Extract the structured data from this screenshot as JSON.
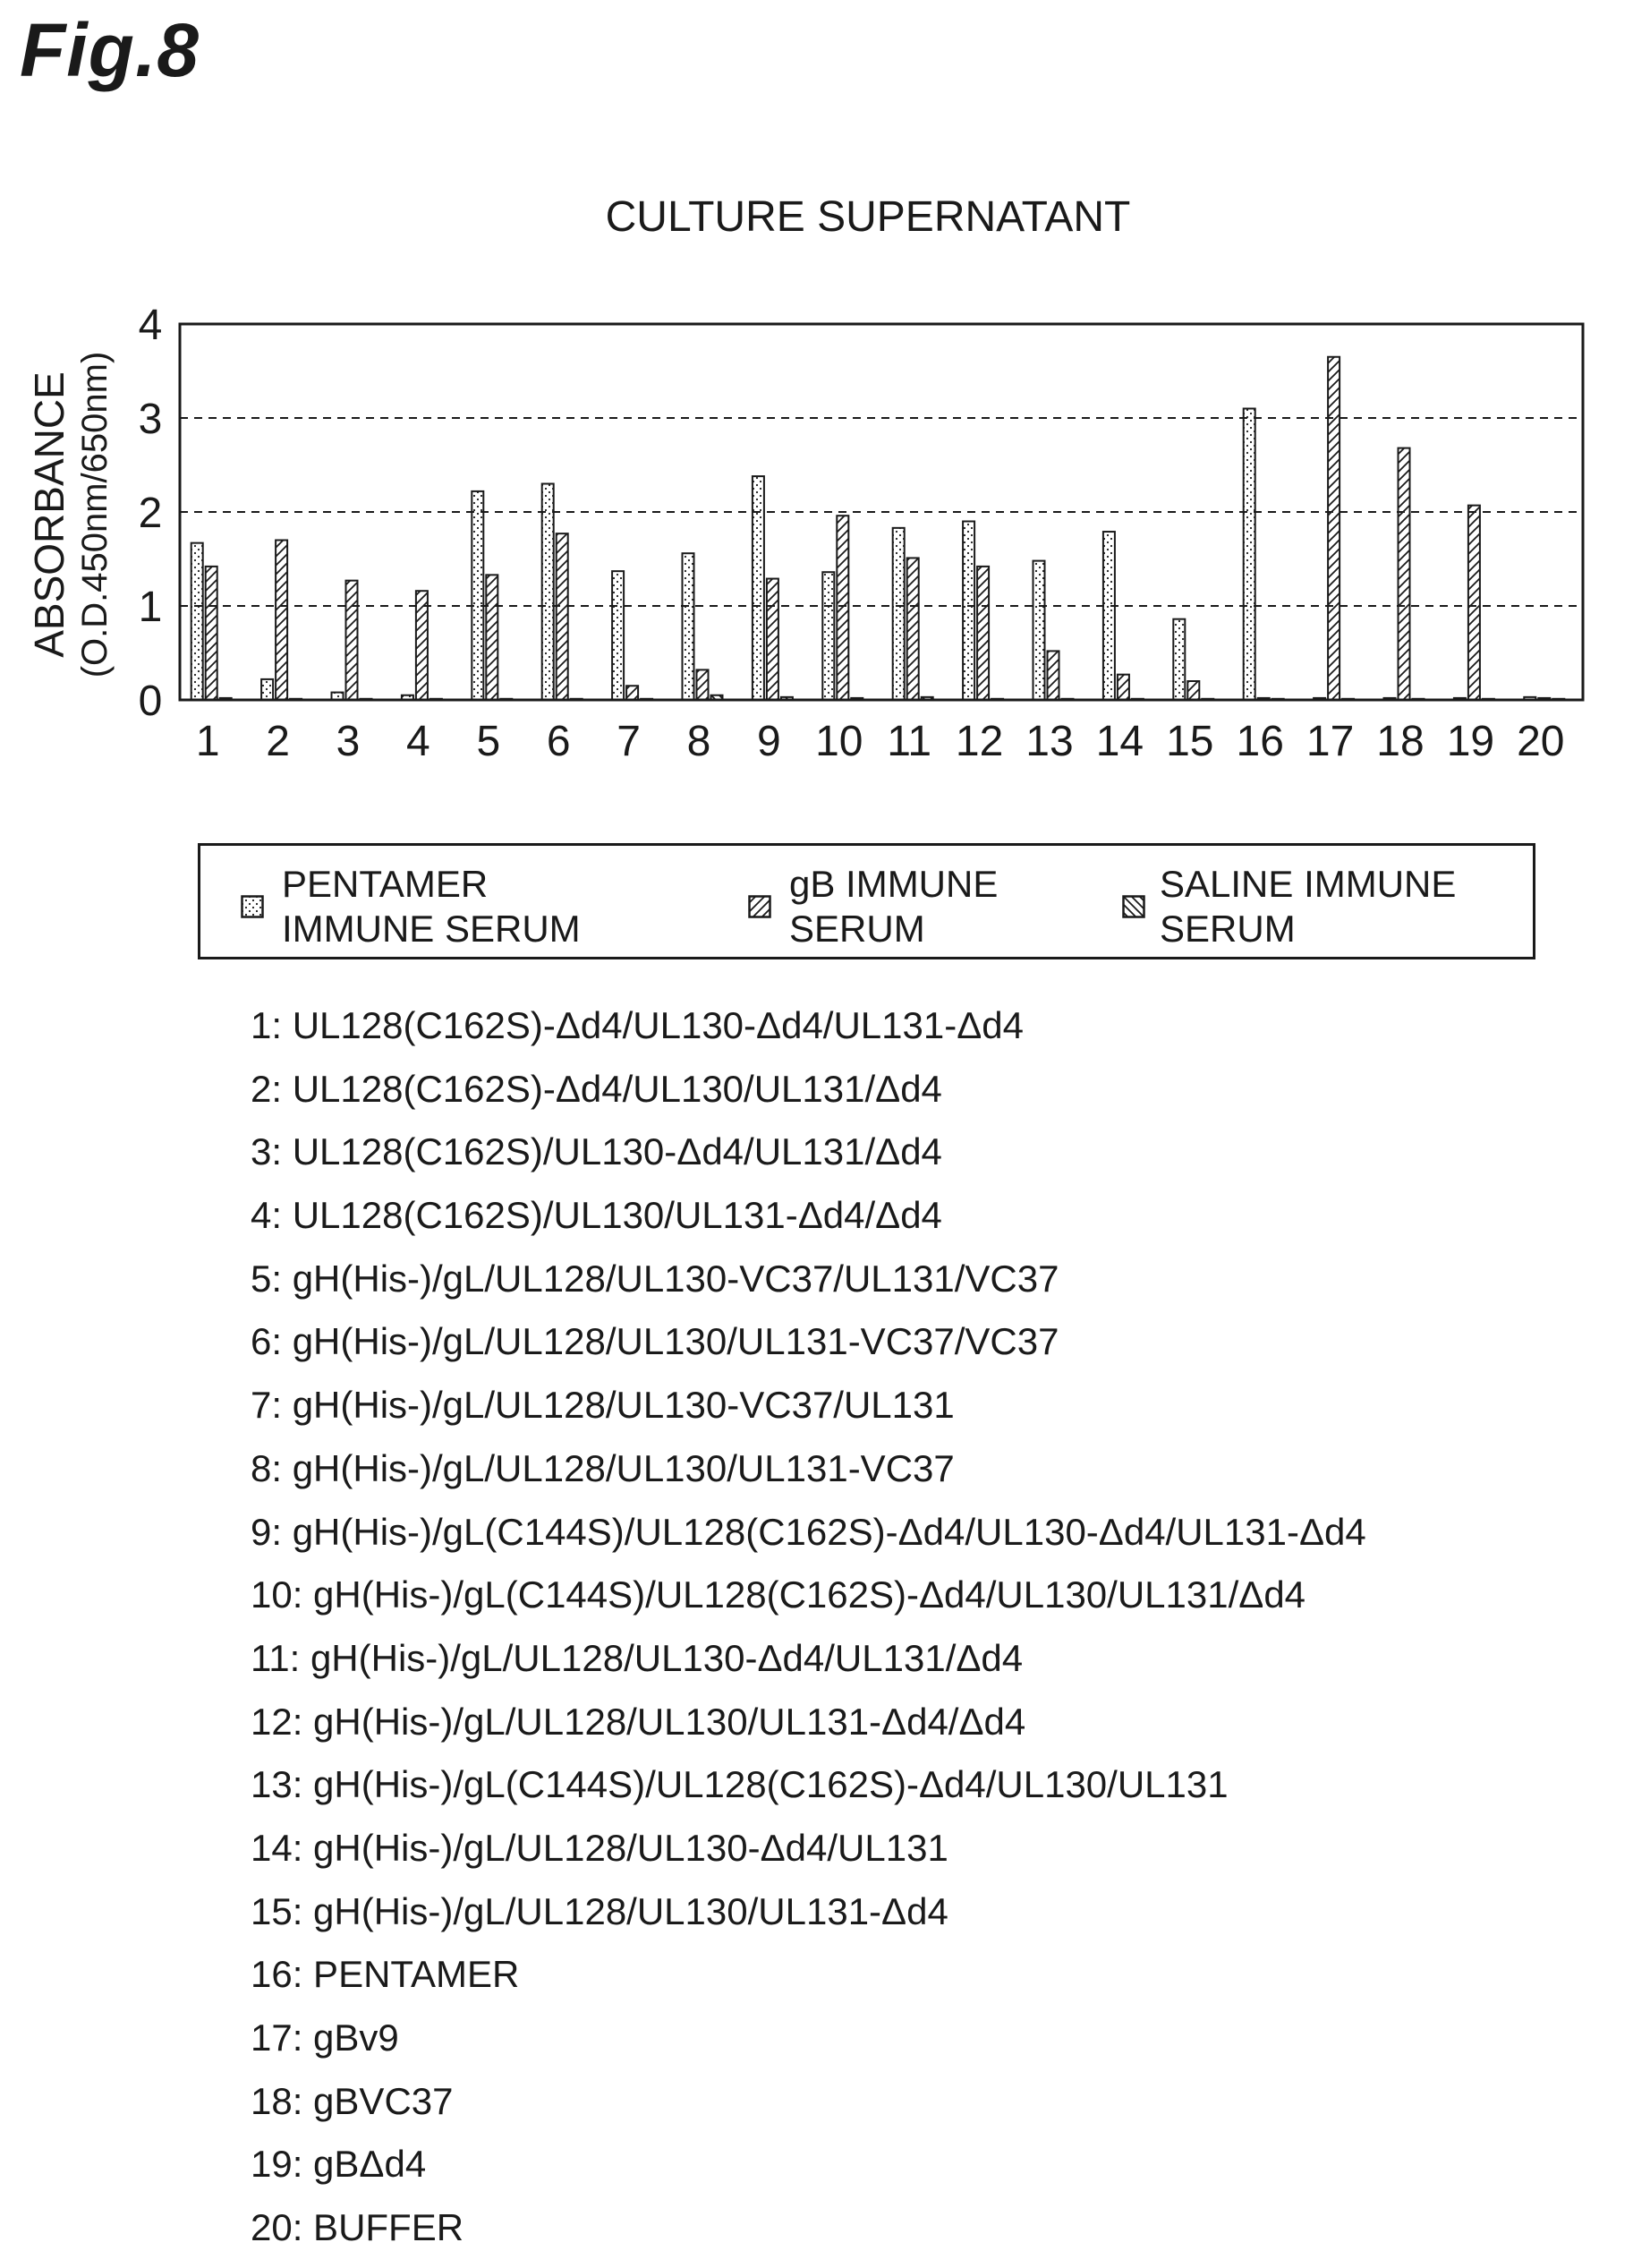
{
  "figure_label": "Fig.8",
  "chart_data": {
    "type": "bar",
    "title": "CULTURE SUPERNATANT",
    "ylabel_line1": "ABSORBANCE",
    "ylabel_line2": "(O.D.450nm/650nm)",
    "xlabel": "",
    "ylim": [
      0,
      4
    ],
    "yticks": [
      "0",
      "1",
      "2",
      "3",
      "4"
    ],
    "grid": "dashed horizontal at 1, 2, 3",
    "legend_position": "below plot",
    "categories": [
      "1",
      "2",
      "3",
      "4",
      "5",
      "6",
      "7",
      "8",
      "9",
      "10",
      "11",
      "12",
      "13",
      "14",
      "15",
      "16",
      "17",
      "18",
      "19",
      "20"
    ],
    "series": [
      {
        "name": "PENTAMER IMMUNE SERUM",
        "name_lines": [
          "PENTAMER",
          "IMMUNE SERUM"
        ],
        "pattern": "dots",
        "values": [
          1.67,
          0.22,
          0.08,
          0.05,
          2.22,
          2.3,
          1.37,
          1.56,
          2.38,
          1.36,
          1.83,
          1.9,
          1.48,
          1.79,
          0.86,
          3.1,
          0.02,
          0.02,
          0.02,
          0.03
        ]
      },
      {
        "name": "gB IMMUNE SERUM",
        "name_lines": [
          "gB IMMUNE",
          "SERUM"
        ],
        "pattern": "hatch",
        "values": [
          1.42,
          1.7,
          1.27,
          1.16,
          1.33,
          1.77,
          0.15,
          0.32,
          1.29,
          1.96,
          1.51,
          1.42,
          0.52,
          0.27,
          0.2,
          0.02,
          3.65,
          2.68,
          2.07,
          0.02
        ]
      },
      {
        "name": "SALINE IMMUNE SERUM",
        "name_lines": [
          "SALINE IMMUNE",
          "SERUM"
        ],
        "pattern": "crosshatch",
        "values": [
          0.02,
          0.01,
          0.01,
          0.01,
          0.01,
          0.01,
          0.01,
          0.05,
          0.03,
          0.02,
          0.03,
          0.01,
          0.01,
          0.01,
          0.01,
          0.01,
          0.01,
          0.01,
          0.01,
          0.01
        ]
      }
    ],
    "colors": {
      "ink": "#1a1a1a",
      "fill": "#ffffff"
    }
  },
  "sample_key": [
    "1: UL128(C162S)-Δd4/UL130-Δd4/UL131-Δd4",
    "2: UL128(C162S)-Δd4/UL130/UL131/Δd4",
    "3: UL128(C162S)/UL130-Δd4/UL131/Δd4",
    "4: UL128(C162S)/UL130/UL131-Δd4/Δd4",
    "5: gH(His-)/gL/UL128/UL130-VC37/UL131/VC37",
    "6: gH(His-)/gL/UL128/UL130/UL131-VC37/VC37",
    "7: gH(His-)/gL/UL128/UL130-VC37/UL131",
    "8: gH(His-)/gL/UL128/UL130/UL131-VC37",
    "9: gH(His-)/gL(C144S)/UL128(C162S)-Δd4/UL130-Δd4/UL131-Δd4",
    "10: gH(His-)/gL(C144S)/UL128(C162S)-Δd4/UL130/UL131/Δd4",
    "11: gH(His-)/gL/UL128/UL130-Δd4/UL131/Δd4",
    "12: gH(His-)/gL/UL128/UL130/UL131-Δd4/Δd4",
    "13: gH(His-)/gL(C144S)/UL128(C162S)-Δd4/UL130/UL131",
    "14: gH(His-)/gL/UL128/UL130-Δd4/UL131",
    "15: gH(His-)/gL/UL128/UL130/UL131-Δd4",
    "16: PENTAMER",
    "17: gBv9",
    "18: gBVC37",
    "19: gBΔd4",
    "20: BUFFER"
  ]
}
